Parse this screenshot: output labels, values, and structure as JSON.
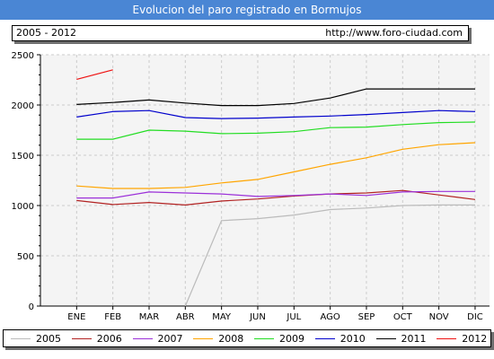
{
  "title": "Evolucion del paro registrado en Bormujos",
  "info": {
    "period": "2005 - 2012",
    "url": "http://www.foro-ciudad.com"
  },
  "chart_data": {
    "type": "line",
    "title": "Evolucion del paro registrado en Bormujos",
    "categories": [
      "ENE",
      "FEB",
      "MAR",
      "ABR",
      "MAY",
      "JUN",
      "JUL",
      "AGO",
      "SEP",
      "OCT",
      "NOV",
      "DIC"
    ],
    "y_ticks": [
      0,
      500,
      1000,
      1500,
      2000,
      2500
    ],
    "ylim": [
      0,
      2500
    ],
    "grid": true,
    "legend_position": "bottom",
    "series": [
      {
        "name": "2005",
        "color": "#bbbbbb",
        "values": [
          null,
          null,
          null,
          0,
          850,
          870,
          905,
          960,
          975,
          1000,
          1005,
          1005
        ]
      },
      {
        "name": "2006",
        "color": "#b22222",
        "values": [
          1050,
          1010,
          1030,
          1005,
          1045,
          1065,
          1095,
          1115,
          1125,
          1150,
          1105,
          1060
        ]
      },
      {
        "name": "2007",
        "color": "#9b30d9",
        "values": [
          1075,
          1075,
          1135,
          1125,
          1115,
          1090,
          1100,
          1115,
          1100,
          1135,
          1140,
          1140
        ]
      },
      {
        "name": "2008",
        "color": "#ffa500",
        "values": [
          1195,
          1170,
          1170,
          1180,
          1225,
          1260,
          1335,
          1410,
          1475,
          1560,
          1605,
          1625
        ]
      },
      {
        "name": "2009",
        "color": "#22dd22",
        "values": [
          1660,
          1660,
          1750,
          1740,
          1715,
          1720,
          1735,
          1775,
          1780,
          1805,
          1825,
          1830
        ]
      },
      {
        "name": "2010",
        "color": "#0000cc",
        "values": [
          1880,
          1935,
          1945,
          1875,
          1865,
          1870,
          1880,
          1890,
          1905,
          1925,
          1945,
          1935
        ]
      },
      {
        "name": "2011",
        "color": "#000000",
        "values": [
          2005,
          2025,
          2050,
          2020,
          1995,
          1995,
          2015,
          2070,
          2160,
          2160,
          2160,
          2160
        ]
      },
      {
        "name": "2012",
        "color": "#ee1111",
        "values": [
          2255,
          2350,
          null,
          null,
          null,
          null,
          null,
          null,
          null,
          null,
          null,
          null
        ]
      }
    ]
  }
}
